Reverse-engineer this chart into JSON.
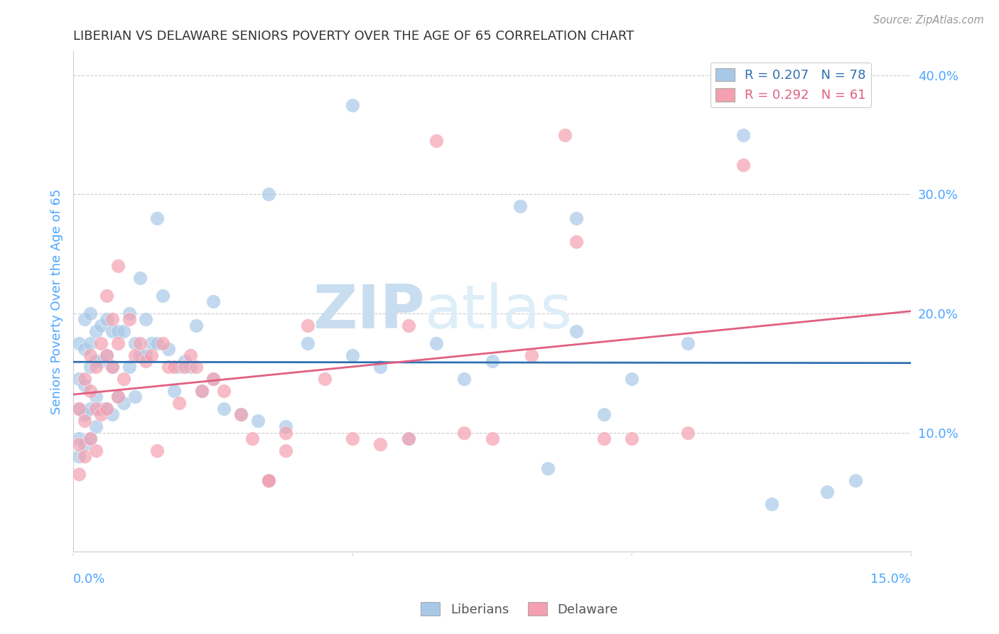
{
  "title": "LIBERIAN VS DELAWARE SENIORS POVERTY OVER THE AGE OF 65 CORRELATION CHART",
  "source": "Source: ZipAtlas.com",
  "ylabel": "Seniors Poverty Over the Age of 65",
  "xlim": [
    0.0,
    0.15
  ],
  "ylim": [
    0.0,
    0.42
  ],
  "yticks": [
    0.1,
    0.2,
    0.3,
    0.4
  ],
  "ytick_labels": [
    "10.0%",
    "20.0%",
    "30.0%",
    "40.0%"
  ],
  "watermark": "ZIPatlas",
  "liberian_color": "#a8c8e8",
  "delaware_color": "#f4a0b0",
  "liberian_line_color": "#3070b0",
  "delaware_line_color": "#e06080",
  "background_color": "#ffffff",
  "grid_color": "#cccccc",
  "axis_label_color": "#4da6ff",
  "watermark_color": "#ddeeff",
  "R_liberian": 0.207,
  "N_liberian": 78,
  "R_delaware": 0.292,
  "N_delaware": 61,
  "liberian_x": [
    0.001,
    0.001,
    0.001,
    0.001,
    0.001,
    0.002,
    0.002,
    0.002,
    0.002,
    0.002,
    0.003,
    0.003,
    0.003,
    0.003,
    0.003,
    0.004,
    0.004,
    0.004,
    0.004,
    0.005,
    0.005,
    0.005,
    0.006,
    0.006,
    0.006,
    0.007,
    0.007,
    0.007,
    0.008,
    0.008,
    0.009,
    0.009,
    0.01,
    0.01,
    0.011,
    0.011,
    0.012,
    0.012,
    0.013,
    0.013,
    0.014,
    0.015,
    0.015,
    0.016,
    0.017,
    0.018,
    0.019,
    0.02,
    0.021,
    0.022,
    0.023,
    0.025,
    0.027,
    0.03,
    0.033,
    0.035,
    0.038,
    0.042,
    0.05,
    0.055,
    0.06,
    0.065,
    0.07,
    0.075,
    0.085,
    0.09,
    0.095,
    0.1,
    0.11,
    0.12,
    0.125,
    0.135,
    0.14,
    0.05,
    0.08,
    0.035,
    0.09,
    0.025
  ],
  "liberian_y": [
    0.175,
    0.145,
    0.12,
    0.095,
    0.08,
    0.195,
    0.17,
    0.14,
    0.115,
    0.09,
    0.2,
    0.175,
    0.155,
    0.12,
    0.095,
    0.185,
    0.16,
    0.13,
    0.105,
    0.19,
    0.16,
    0.12,
    0.195,
    0.165,
    0.12,
    0.185,
    0.155,
    0.115,
    0.185,
    0.13,
    0.185,
    0.125,
    0.2,
    0.155,
    0.175,
    0.13,
    0.23,
    0.165,
    0.195,
    0.165,
    0.175,
    0.28,
    0.175,
    0.215,
    0.17,
    0.135,
    0.155,
    0.16,
    0.155,
    0.19,
    0.135,
    0.145,
    0.12,
    0.115,
    0.11,
    0.06,
    0.105,
    0.175,
    0.165,
    0.155,
    0.095,
    0.175,
    0.145,
    0.16,
    0.07,
    0.185,
    0.115,
    0.145,
    0.175,
    0.35,
    0.04,
    0.05,
    0.06,
    0.375,
    0.29,
    0.3,
    0.28,
    0.21
  ],
  "delaware_x": [
    0.001,
    0.001,
    0.001,
    0.002,
    0.002,
    0.002,
    0.003,
    0.003,
    0.003,
    0.004,
    0.004,
    0.004,
    0.005,
    0.005,
    0.006,
    0.006,
    0.006,
    0.007,
    0.007,
    0.008,
    0.008,
    0.009,
    0.01,
    0.011,
    0.012,
    0.013,
    0.014,
    0.015,
    0.016,
    0.017,
    0.018,
    0.019,
    0.02,
    0.021,
    0.022,
    0.023,
    0.025,
    0.027,
    0.03,
    0.032,
    0.035,
    0.038,
    0.042,
    0.045,
    0.05,
    0.055,
    0.06,
    0.065,
    0.07,
    0.075,
    0.082,
    0.088,
    0.095,
    0.1,
    0.11,
    0.12,
    0.008,
    0.035,
    0.09,
    0.06,
    0.038
  ],
  "delaware_y": [
    0.12,
    0.09,
    0.065,
    0.145,
    0.11,
    0.08,
    0.165,
    0.135,
    0.095,
    0.155,
    0.12,
    0.085,
    0.175,
    0.115,
    0.215,
    0.165,
    0.12,
    0.195,
    0.155,
    0.175,
    0.13,
    0.145,
    0.195,
    0.165,
    0.175,
    0.16,
    0.165,
    0.085,
    0.175,
    0.155,
    0.155,
    0.125,
    0.155,
    0.165,
    0.155,
    0.135,
    0.145,
    0.135,
    0.115,
    0.095,
    0.06,
    0.085,
    0.19,
    0.145,
    0.095,
    0.09,
    0.095,
    0.345,
    0.1,
    0.095,
    0.165,
    0.35,
    0.095,
    0.095,
    0.1,
    0.325,
    0.24,
    0.06,
    0.26,
    0.19,
    0.1
  ]
}
